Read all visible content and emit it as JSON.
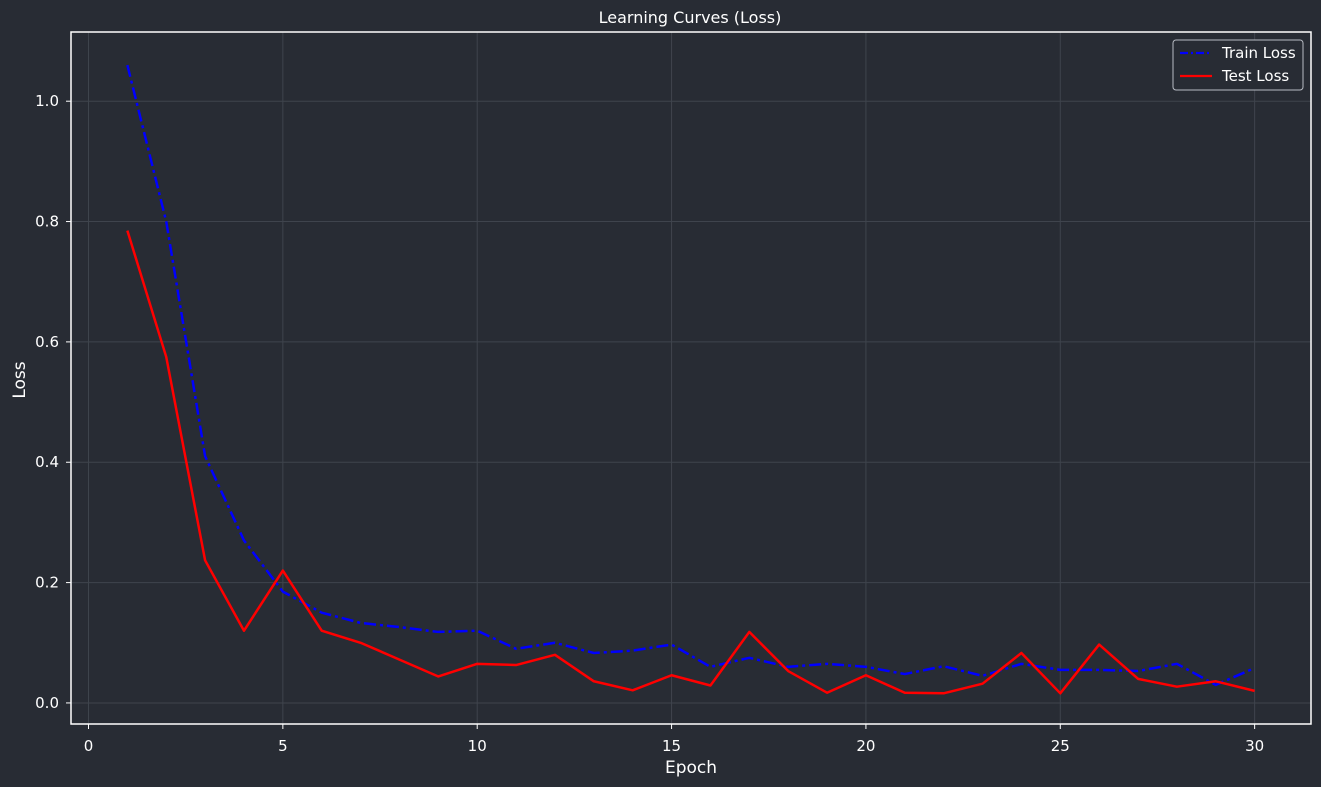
{
  "chart_data": {
    "type": "line",
    "title": "Learning Curves (Loss)",
    "xlabel": "Epoch",
    "ylabel": "Loss",
    "xlim": [
      -0.45,
      31.45
    ],
    "ylim": [
      -0.035,
      1.115
    ],
    "xticks": [
      0,
      5,
      10,
      15,
      20,
      25,
      30
    ],
    "yticks": [
      0.0,
      0.2,
      0.4,
      0.6,
      0.8,
      1.0
    ],
    "xtick_labels": [
      "0",
      "5",
      "10",
      "15",
      "20",
      "25",
      "30"
    ],
    "ytick_labels": [
      "0.0",
      "0.2",
      "0.4",
      "0.6",
      "0.8",
      "1.0"
    ],
    "grid": true,
    "legend_position": "top-right",
    "x": [
      1,
      2,
      3,
      4,
      5,
      6,
      7,
      8,
      9,
      10,
      11,
      12,
      13,
      14,
      15,
      16,
      17,
      18,
      19,
      20,
      21,
      22,
      23,
      24,
      25,
      26,
      27,
      28,
      29,
      30
    ],
    "series": [
      {
        "name": "Train Loss",
        "color": "#0000ff",
        "style": "dashdot",
        "values": [
          1.06,
          0.8,
          0.41,
          0.27,
          0.185,
          0.15,
          0.133,
          0.126,
          0.118,
          0.12,
          0.09,
          0.1,
          0.083,
          0.087,
          0.097,
          0.06,
          0.075,
          0.06,
          0.065,
          0.06,
          0.048,
          0.061,
          0.045,
          0.065,
          0.055,
          0.055,
          0.053,
          0.065,
          0.03,
          0.058
        ]
      },
      {
        "name": "Test Loss",
        "color": "#ff0000",
        "style": "solid",
        "values": [
          0.785,
          0.575,
          0.237,
          0.12,
          0.22,
          0.12,
          0.1,
          0.072,
          0.044,
          0.065,
          0.063,
          0.08,
          0.036,
          0.021,
          0.046,
          0.029,
          0.118,
          0.053,
          0.017,
          0.046,
          0.017,
          0.016,
          0.032,
          0.083,
          0.016,
          0.097,
          0.04,
          0.027,
          0.036,
          0.02
        ]
      }
    ]
  }
}
